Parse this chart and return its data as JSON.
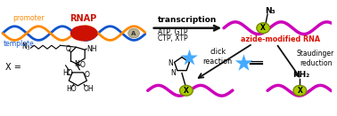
{
  "bg_color": "#ffffff",
  "promoter_color": "#ff8800",
  "template_color": "#1155cc",
  "rnap_color": "#cc1100",
  "rna_color": "#cc00bb",
  "yellow_node_color": "#aacc00",
  "yellow_node_edge": "#778800",
  "star_color": "#44aaff",
  "arrow_color": "#111111",
  "red_text_color": "#dd1100",
  "text_transcription": "transcription",
  "text_atp": "ATP, GTP",
  "text_ctp": "CTP, XTP",
  "text_azide": "azide-modified RNA",
  "text_click": "click\nreaction",
  "text_staudinger": "Staudinger\nreduction",
  "text_promoter": "promoter",
  "text_template": "template",
  "text_rnap": "RNAP",
  "text_x_label": "X =",
  "text_n3_top": "N₃",
  "text_nh2": "NH₂"
}
